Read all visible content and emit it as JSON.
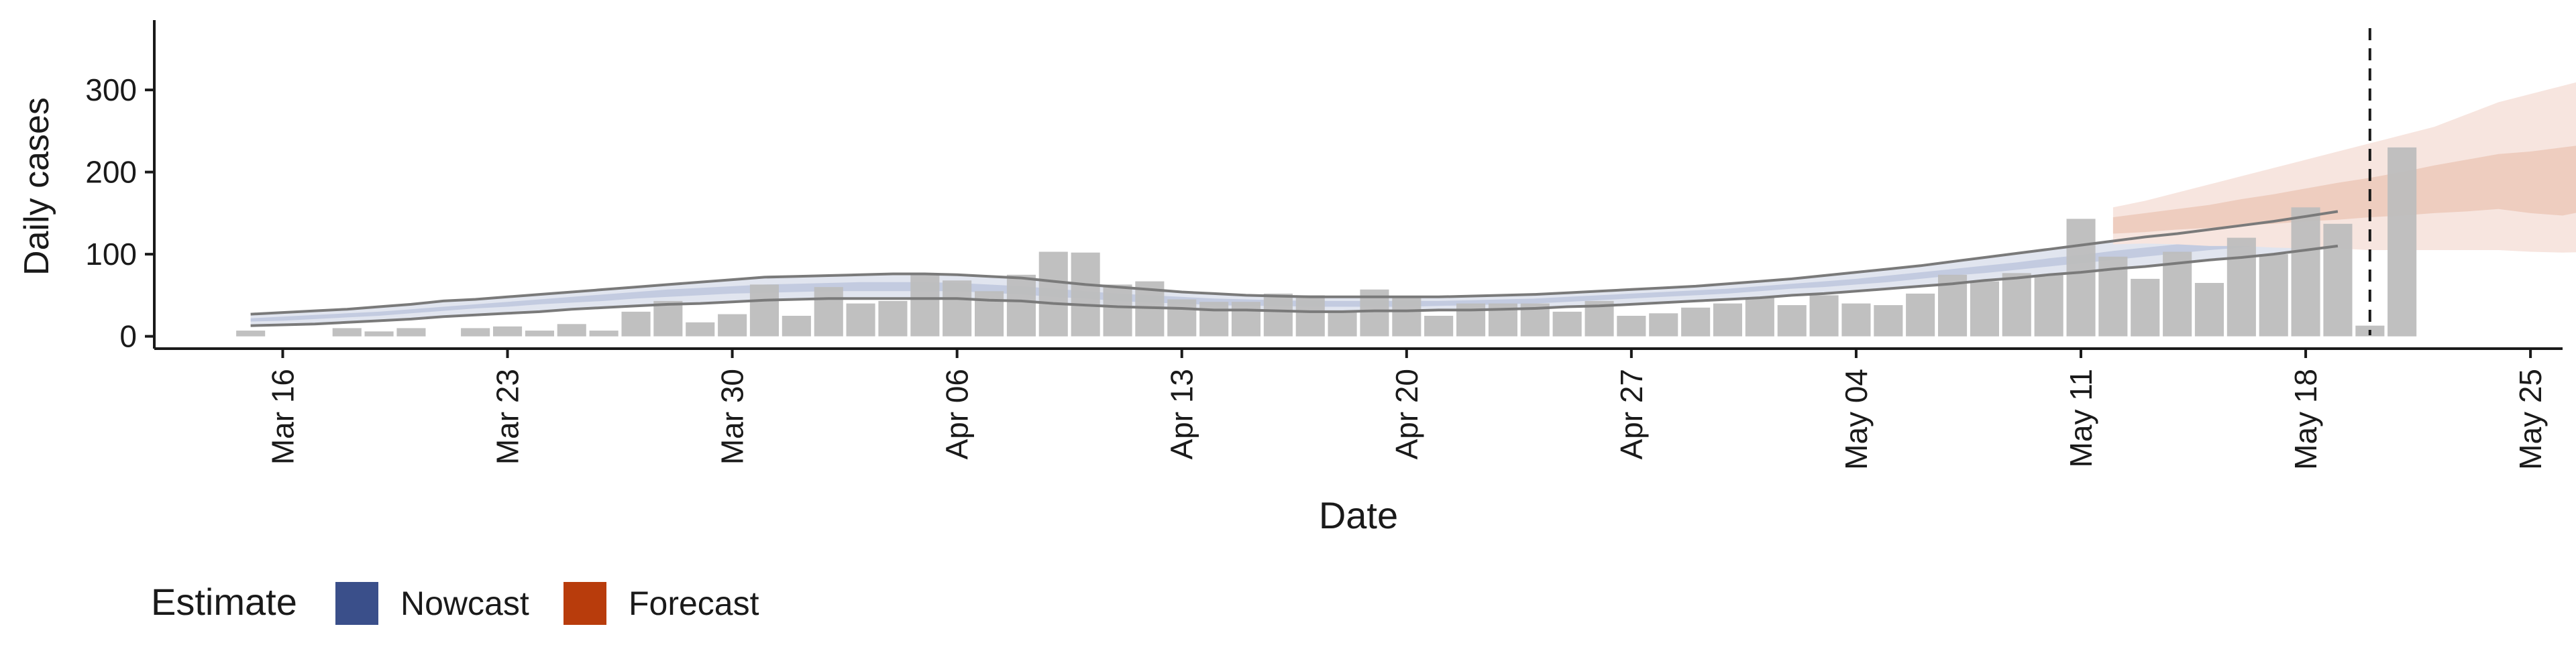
{
  "chart_data": {
    "type": "bar",
    "title": "",
    "xlabel": "Date",
    "ylabel": "Daily cases",
    "x_axis": {
      "type": "date",
      "range": [
        "2020-03-12",
        "2020-05-26"
      ],
      "ticks": [
        {
          "date": "2020-03-16",
          "label": "Mar 16"
        },
        {
          "date": "2020-03-23",
          "label": "Mar 23"
        },
        {
          "date": "2020-03-30",
          "label": "Mar 30"
        },
        {
          "date": "2020-04-06",
          "label": "Apr 06"
        },
        {
          "date": "2020-04-13",
          "label": "Apr 13"
        },
        {
          "date": "2020-04-20",
          "label": "Apr 20"
        },
        {
          "date": "2020-04-27",
          "label": "Apr 27"
        },
        {
          "date": "2020-05-04",
          "label": "May 04"
        },
        {
          "date": "2020-05-11",
          "label": "May 11"
        },
        {
          "date": "2020-05-18",
          "label": "May 18"
        },
        {
          "date": "2020-05-25",
          "label": "May 25"
        }
      ]
    },
    "y_axis": {
      "range": [
        -15,
        385
      ],
      "ticks": [
        0,
        100,
        200,
        300
      ]
    },
    "grid": false,
    "legend": {
      "placement": "bottom-left",
      "title": "Estimate",
      "entries": [
        {
          "label": "Nowcast",
          "color": "#3a4f8a"
        },
        {
          "label": "Forecast",
          "color": "#b83c0c"
        }
      ]
    },
    "colors": {
      "bars": "#bdbdbd",
      "nowcast_outer": "#e1e5ef",
      "nowcast_inner": "#c3cbe0",
      "forecast_outer": "#f7e5df",
      "forecast_inner": "#eecdbf",
      "band_lines": "#7a7a7a",
      "vline": "#1a1a1a"
    },
    "vline_date": "2020-05-20",
    "bars": {
      "start": "2020-03-15",
      "values": [
        7,
        0,
        0,
        10,
        6,
        10,
        0,
        10,
        12,
        7,
        15,
        7,
        30,
        43,
        17,
        27,
        63,
        25,
        60,
        40,
        43,
        77,
        68,
        55,
        75,
        103,
        102,
        63,
        67,
        45,
        42,
        42,
        52,
        50,
        30,
        57,
        48,
        25,
        40,
        40,
        40,
        30,
        43,
        25,
        28,
        35,
        40,
        47,
        38,
        50,
        40,
        38,
        52,
        75,
        67,
        77,
        75,
        143,
        97,
        70,
        103,
        65,
        120,
        100,
        157,
        137,
        13,
        230
      ]
    },
    "nowcast": {
      "start": "2020-03-15",
      "outer_upper": [
        27,
        29,
        31,
        33,
        36,
        39,
        43,
        45,
        48,
        51,
        54,
        57,
        60,
        63,
        66,
        69,
        72,
        73,
        74,
        75,
        76,
        76,
        75,
        73,
        71,
        67,
        63,
        60,
        57,
        54,
        52,
        50,
        49,
        48,
        48,
        48,
        48,
        48,
        49,
        50,
        51,
        53,
        55,
        57,
        59,
        61,
        64,
        67,
        70,
        74,
        78,
        82,
        86,
        91,
        96,
        101,
        106,
        111,
        116,
        121,
        125,
        130,
        135,
        140,
        146,
        152
      ],
      "inner_upper": [
        22,
        24,
        26,
        28,
        30,
        33,
        36,
        39,
        42,
        45,
        48,
        51,
        54,
        57,
        59,
        61,
        63,
        64,
        65,
        66,
        66,
        66,
        65,
        63,
        61,
        58,
        55,
        52,
        50,
        48,
        46,
        45,
        44,
        43,
        43,
        43,
        43,
        43,
        44,
        45,
        46,
        48,
        50,
        52,
        54,
        56,
        58,
        61,
        64,
        67,
        70,
        74,
        78,
        82,
        86,
        90,
        95,
        99,
        104,
        108,
        112,
        116,
        120,
        125,
        130,
        136
      ],
      "inner_lower": [
        18,
        19,
        21,
        23,
        25,
        28,
        31,
        34,
        36,
        39,
        41,
        43,
        46,
        48,
        50,
        52,
        53,
        54,
        55,
        55,
        55,
        55,
        55,
        53,
        51,
        48,
        46,
        43,
        41,
        40,
        38,
        37,
        37,
        36,
        36,
        36,
        36,
        37,
        38,
        39,
        40,
        42,
        44,
        46,
        48,
        50,
        52,
        55,
        58,
        60,
        63,
        66,
        70,
        74,
        77,
        81,
        85,
        89,
        93,
        97,
        101,
        105,
        108,
        113,
        117,
        122
      ],
      "outer_lower": [
        13,
        14,
        15,
        17,
        19,
        21,
        24,
        26,
        28,
        30,
        33,
        35,
        37,
        39,
        40,
        42,
        44,
        45,
        46,
        46,
        46,
        46,
        46,
        44,
        43,
        40,
        38,
        36,
        35,
        34,
        32,
        32,
        31,
        30,
        30,
        31,
        31,
        32,
        32,
        33,
        34,
        36,
        37,
        39,
        41,
        43,
        45,
        47,
        50,
        52,
        55,
        58,
        61,
        64,
        68,
        71,
        75,
        78,
        82,
        85,
        89,
        93,
        96,
        100,
        105,
        110
      ]
    },
    "forecast": {
      "start": "2020-05-12",
      "outer_upper": [
        157,
        165,
        175,
        185,
        195,
        205,
        215,
        225,
        235,
        245,
        255,
        270,
        285,
        295,
        305,
        315,
        325,
        335,
        350,
        370
      ],
      "inner_upper": [
        145,
        150,
        155,
        160,
        167,
        173,
        180,
        187,
        193,
        200,
        208,
        215,
        222,
        225,
        230,
        235,
        240,
        243,
        255,
        260
      ],
      "inner_lower": [
        125,
        127,
        130,
        132,
        135,
        137,
        140,
        142,
        145,
        147,
        150,
        152,
        155,
        150,
        147,
        155,
        160,
        157,
        160,
        163
      ],
      "outer_lower": [
        112,
        113,
        112,
        110,
        110,
        108,
        107,
        107,
        105,
        105,
        105,
        105,
        105,
        103,
        102,
        103,
        100,
        100,
        102,
        103
      ]
    }
  }
}
